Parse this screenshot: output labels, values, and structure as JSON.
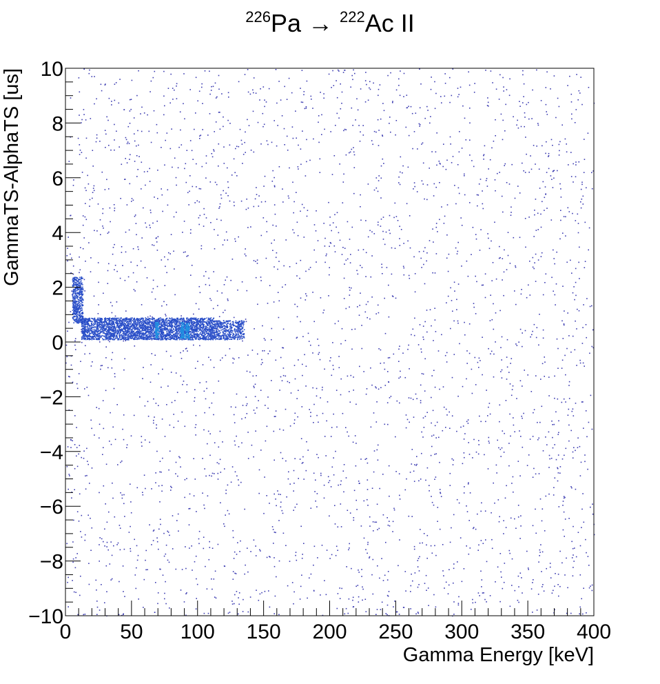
{
  "chart_data": {
    "type": "heatmap",
    "title": {
      "parent_mass": "226",
      "parent_symbol": "Pa",
      "arrow": "→",
      "daughter_mass": "222",
      "daughter_symbol": "Ac II"
    },
    "xlabel": "Gamma Energy [keV]",
    "ylabel": "GammaTS-AlphaTS [us]",
    "xlim": [
      0,
      400
    ],
    "ylim": [
      -10,
      10
    ],
    "x_ticks": [
      0,
      50,
      100,
      150,
      200,
      250,
      300,
      350,
      400
    ],
    "y_ticks": [
      -10,
      -8,
      -6,
      -4,
      -2,
      0,
      2,
      4,
      6,
      8,
      10
    ],
    "grid": false,
    "colors": {
      "background_events": "#3a3ab0",
      "dense_band": "#2a4fc8",
      "hot_spots": "#1f8fe0"
    },
    "dense_regions": [
      {
        "x_range": [
          5,
          13
        ],
        "y_range": [
          0.7,
          2.4
        ]
      },
      {
        "x_range": [
          12,
          112
        ],
        "y_range": [
          0.1,
          0.9
        ]
      },
      {
        "x_range": [
          112,
          135
        ],
        "y_range": [
          0.1,
          0.8
        ]
      }
    ],
    "hot_spots": [
      {
        "x": 69,
        "y": 0.45
      },
      {
        "x": 88,
        "y": 0.45
      },
      {
        "x": 92,
        "y": 0.4
      }
    ]
  }
}
